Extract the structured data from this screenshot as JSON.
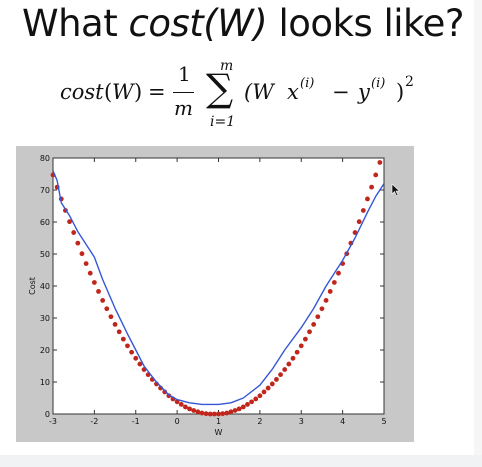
{
  "slide": {
    "title_prefix": "What ",
    "title_italic": "cost(W)",
    "title_suffix": " looks like?",
    "formula": {
      "lhs": "cost",
      "arg": "W",
      "equals": "=",
      "frac_num": "1",
      "frac_den": "m",
      "sum_symbol": "∑",
      "sum_top": "m",
      "sum_bottom": "i=1",
      "term_open": "(W",
      "x": "x",
      "superscript": "(i)",
      "minus": "−",
      "y": "y",
      "term_close": ")",
      "power": "2"
    }
  },
  "chart_data": {
    "type": "line",
    "title": "",
    "xlabel": "W",
    "ylabel": "Cost",
    "xlim": [
      -3,
      5
    ],
    "ylim": [
      0,
      80
    ],
    "xticks": [
      -3,
      -2,
      -1,
      0,
      1,
      2,
      3,
      4,
      5
    ],
    "yticks": [
      0,
      10,
      20,
      30,
      40,
      50,
      60,
      70,
      80
    ],
    "grid": false,
    "colors": {
      "line": "#3557d6",
      "points": "#c0261c",
      "background": "#c8c8c8"
    },
    "series": [
      {
        "kind": "line",
        "x": [
          -3.0,
          -2.9,
          -2.8,
          -2.6,
          -2.4,
          -2.2,
          -2.0,
          -1.8,
          -1.5,
          -1.2,
          -1.0,
          -0.8,
          -0.5,
          -0.2,
          0.0,
          0.3,
          0.6,
          1.0,
          1.3,
          1.6,
          2.0,
          2.3,
          2.6,
          3.0,
          3.3,
          3.6,
          4.0,
          4.3,
          4.6,
          4.8,
          5.0
        ],
        "y": [
          76.0,
          73.0,
          66.0,
          62.0,
          57.0,
          53.0,
          49.0,
          42.0,
          33.0,
          25.0,
          20.0,
          15.0,
          10.0,
          6.0,
          4.5,
          3.5,
          3.0,
          3.0,
          3.5,
          5.0,
          9.0,
          14.0,
          20.0,
          27.0,
          33.0,
          40.0,
          48.0,
          55.0,
          63.0,
          68.0,
          72.0
        ]
      },
      {
        "kind": "points",
        "x": [
          -3.0,
          -2.9,
          -2.8,
          -2.7,
          -2.6,
          -2.5,
          -2.4,
          -2.3,
          -2.2,
          -2.1,
          -2.0,
          -1.9,
          -1.8,
          -1.7,
          -1.6,
          -1.5,
          -1.4,
          -1.3,
          -1.2,
          -1.1,
          -1.0,
          -0.9,
          -0.8,
          -0.7,
          -0.6,
          -0.5,
          -0.4,
          -0.3,
          -0.2,
          -0.1,
          0.0,
          0.1,
          0.2,
          0.3,
          0.4,
          0.5,
          0.6,
          0.7,
          0.8,
          0.9,
          1.0,
          1.1,
          1.2,
          1.3,
          1.4,
          1.5,
          1.6,
          1.7,
          1.8,
          1.9,
          2.0,
          2.1,
          2.2,
          2.3,
          2.4,
          2.5,
          2.6,
          2.7,
          2.8,
          2.9,
          3.0,
          3.1,
          3.2,
          3.3,
          3.4,
          3.5,
          3.6,
          3.7,
          3.8,
          3.9,
          4.0,
          4.1,
          4.2,
          4.3,
          4.4,
          4.5,
          4.6,
          4.7,
          4.8,
          4.9
        ],
        "y": [
          74.7,
          70.9,
          67.2,
          63.6,
          60.1,
          56.7,
          53.4,
          50.1,
          47.0,
          44.0,
          41.1,
          38.3,
          35.5,
          32.9,
          30.4,
          28.0,
          25.7,
          23.4,
          21.3,
          19.3,
          17.4,
          15.6,
          13.9,
          12.3,
          10.8,
          9.4,
          8.1,
          6.9,
          5.7,
          4.7,
          3.8,
          3.0,
          2.2,
          1.6,
          1.1,
          0.7,
          0.3,
          0.1,
          0.0,
          0.0,
          0.0,
          0.1,
          0.3,
          0.7,
          1.1,
          1.6,
          2.2,
          3.0,
          3.8,
          4.7,
          5.7,
          6.9,
          8.1,
          9.4,
          10.8,
          12.3,
          13.9,
          15.6,
          17.4,
          19.3,
          21.3,
          23.4,
          25.7,
          28.0,
          30.4,
          32.9,
          35.5,
          38.3,
          41.1,
          44.0,
          47.0,
          50.1,
          53.4,
          56.7,
          60.1,
          63.6,
          67.2,
          70.9,
          74.7,
          78.6
        ]
      }
    ]
  }
}
